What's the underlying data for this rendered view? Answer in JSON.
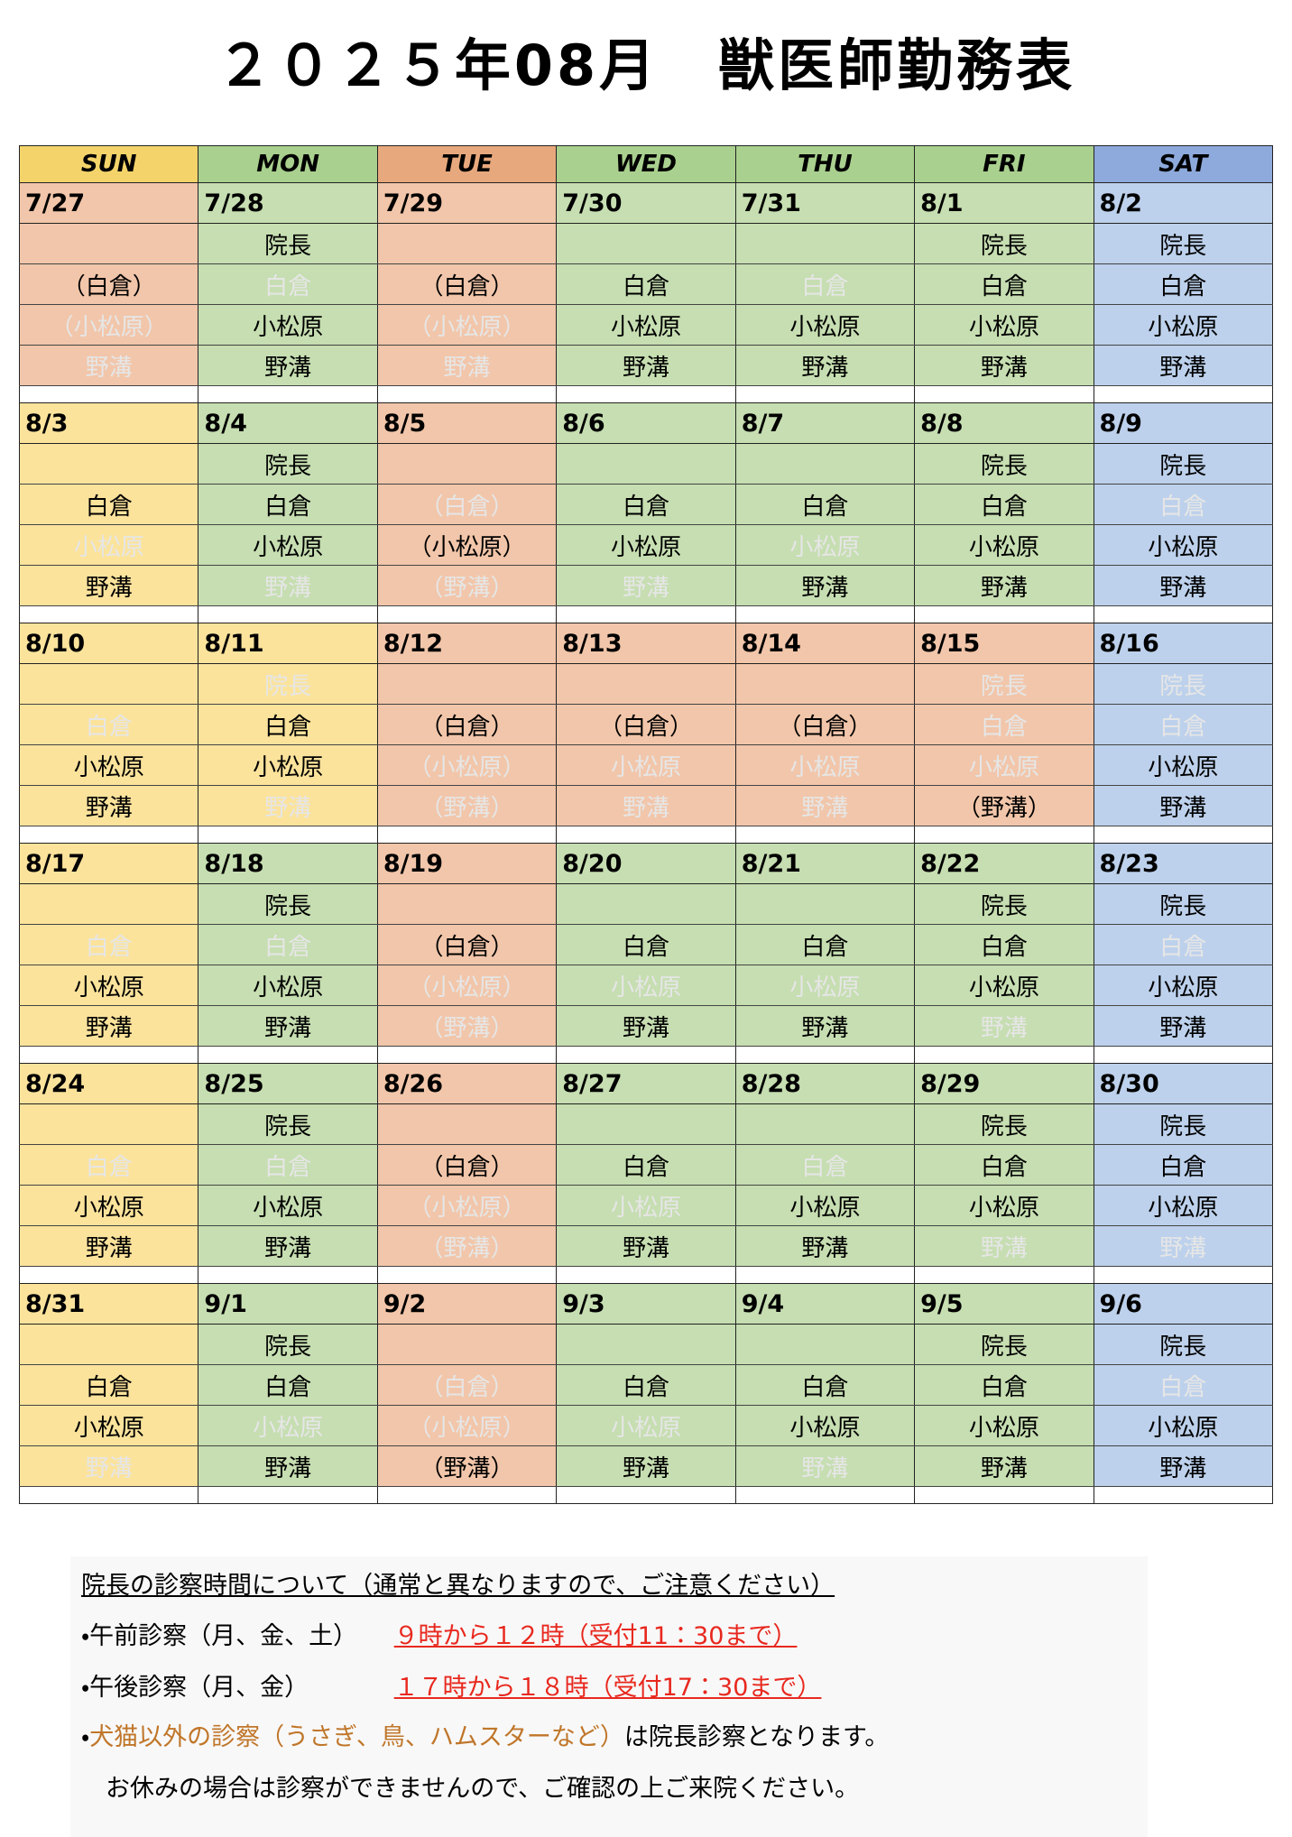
{
  "title": "２０２５年08月　獣医師勤務表",
  "headers": [
    {
      "text": "SUN",
      "color": "#f4d46a"
    },
    {
      "text": "MON",
      "color": "#a9d08e"
    },
    {
      "text": "TUE",
      "color": "#e8a87d"
    },
    {
      "text": "WED",
      "color": "#a9d08e"
    },
    {
      "text": "THU",
      "color": "#a9d08e"
    },
    {
      "text": "FRI",
      "color": "#a9d08e"
    },
    {
      "text": "SAT",
      "color": "#8ea9db"
    }
  ],
  "weeks": [
    [
      {
        "date": "7/27",
        "color": "#f2c6aa",
        "staff": [
          null,
          {
            "text": "（白倉）",
            "off": false
          },
          {
            "text": "（小松原）",
            "off": true
          },
          {
            "text": "野溝",
            "off": true
          }
        ]
      },
      {
        "date": "7/28",
        "color": "#c6deb1",
        "staff": [
          {
            "text": "院長",
            "off": false
          },
          {
            "text": "白倉",
            "off": true
          },
          {
            "text": "小松原",
            "off": false
          },
          {
            "text": "野溝",
            "off": false
          }
        ]
      },
      {
        "date": "7/29",
        "color": "#f2c6aa",
        "staff": [
          null,
          {
            "text": "（白倉）",
            "off": false
          },
          {
            "text": "（小松原）",
            "off": true
          },
          {
            "text": "野溝",
            "off": true
          }
        ]
      },
      {
        "date": "7/30",
        "color": "#c6deb1",
        "staff": [
          null,
          {
            "text": "白倉",
            "off": false
          },
          {
            "text": "小松原",
            "off": false
          },
          {
            "text": "野溝",
            "off": false
          }
        ]
      },
      {
        "date": "7/31",
        "color": "#c6deb1",
        "staff": [
          null,
          {
            "text": "白倉",
            "off": true
          },
          {
            "text": "小松原",
            "off": false
          },
          {
            "text": "野溝",
            "off": false
          }
        ]
      },
      {
        "date": "8/1",
        "color": "#c6deb1",
        "staff": [
          {
            "text": "院長",
            "off": false
          },
          {
            "text": "白倉",
            "off": false
          },
          {
            "text": "小松原",
            "off": false
          },
          {
            "text": "野溝",
            "off": false
          }
        ]
      },
      {
        "date": "8/2",
        "color": "#bdd1ec",
        "staff": [
          {
            "text": "院長",
            "off": false
          },
          {
            "text": "白倉",
            "off": false
          },
          {
            "text": "小松原",
            "off": false
          },
          {
            "text": "野溝",
            "off": false
          }
        ]
      }
    ],
    [
      {
        "date": "8/3",
        "color": "#fbe39c",
        "staff": [
          null,
          {
            "text": "白倉",
            "off": false
          },
          {
            "text": "小松原",
            "off": true
          },
          {
            "text": "野溝",
            "off": false
          }
        ]
      },
      {
        "date": "8/4",
        "color": "#c6deb1",
        "staff": [
          {
            "text": "院長",
            "off": false
          },
          {
            "text": "白倉",
            "off": false
          },
          {
            "text": "小松原",
            "off": false
          },
          {
            "text": "野溝",
            "off": true
          }
        ]
      },
      {
        "date": "8/5",
        "color": "#f2c6aa",
        "staff": [
          null,
          {
            "text": "（白倉）",
            "off": true
          },
          {
            "text": "（小松原）",
            "off": false
          },
          {
            "text": "（野溝）",
            "off": true
          }
        ]
      },
      {
        "date": "8/6",
        "color": "#c6deb1",
        "staff": [
          null,
          {
            "text": "白倉",
            "off": false
          },
          {
            "text": "小松原",
            "off": false
          },
          {
            "text": "野溝",
            "off": true
          }
        ]
      },
      {
        "date": "8/7",
        "color": "#c6deb1",
        "staff": [
          null,
          {
            "text": "白倉",
            "off": false
          },
          {
            "text": "小松原",
            "off": true
          },
          {
            "text": "野溝",
            "off": false
          }
        ]
      },
      {
        "date": "8/8",
        "color": "#c6deb1",
        "staff": [
          {
            "text": "院長",
            "off": false
          },
          {
            "text": "白倉",
            "off": false
          },
          {
            "text": "小松原",
            "off": false
          },
          {
            "text": "野溝",
            "off": false
          }
        ]
      },
      {
        "date": "8/9",
        "color": "#bdd1ec",
        "staff": [
          {
            "text": "院長",
            "off": false
          },
          {
            "text": "白倉",
            "off": true
          },
          {
            "text": "小松原",
            "off": false
          },
          {
            "text": "野溝",
            "off": false
          }
        ]
      }
    ],
    [
      {
        "date": "8/10",
        "color": "#fbe39c",
        "staff": [
          null,
          {
            "text": "白倉",
            "off": true
          },
          {
            "text": "小松原",
            "off": false
          },
          {
            "text": "野溝",
            "off": false
          }
        ]
      },
      {
        "date": "8/11",
        "color": "#fbe39c",
        "staff": [
          {
            "text": "院長",
            "off": true
          },
          {
            "text": "白倉",
            "off": false
          },
          {
            "text": "小松原",
            "off": false
          },
          {
            "text": "野溝",
            "off": true
          }
        ]
      },
      {
        "date": "8/12",
        "color": "#f2c6aa",
        "staff": [
          null,
          {
            "text": "（白倉）",
            "off": false
          },
          {
            "text": "（小松原）",
            "off": true
          },
          {
            "text": "（野溝）",
            "off": true
          }
        ]
      },
      {
        "date": "8/13",
        "color": "#f2c6aa",
        "staff": [
          null,
          {
            "text": "（白倉）",
            "off": false
          },
          {
            "text": "小松原",
            "off": true
          },
          {
            "text": "野溝",
            "off": true
          }
        ]
      },
      {
        "date": "8/14",
        "color": "#f2c6aa",
        "staff": [
          null,
          {
            "text": "（白倉）",
            "off": false
          },
          {
            "text": "小松原",
            "off": true
          },
          {
            "text": "野溝",
            "off": true
          }
        ]
      },
      {
        "date": "8/15",
        "color": "#f2c6aa",
        "staff": [
          {
            "text": "院長",
            "off": true
          },
          {
            "text": "白倉",
            "off": true
          },
          {
            "text": "小松原",
            "off": true
          },
          {
            "text": "（野溝）",
            "off": false
          }
        ]
      },
      {
        "date": "8/16",
        "color": "#bdd1ec",
        "staff": [
          {
            "text": "院長",
            "off": true
          },
          {
            "text": "白倉",
            "off": true
          },
          {
            "text": "小松原",
            "off": false
          },
          {
            "text": "野溝",
            "off": false
          }
        ]
      }
    ],
    [
      {
        "date": "8/17",
        "color": "#fbe39c",
        "staff": [
          null,
          {
            "text": "白倉",
            "off": true
          },
          {
            "text": "小松原",
            "off": false
          },
          {
            "text": "野溝",
            "off": false
          }
        ]
      },
      {
        "date": "8/18",
        "color": "#c6deb1",
        "staff": [
          {
            "text": "院長",
            "off": false
          },
          {
            "text": "白倉",
            "off": true
          },
          {
            "text": "小松原",
            "off": false
          },
          {
            "text": "野溝",
            "off": false
          }
        ]
      },
      {
        "date": "8/19",
        "color": "#f2c6aa",
        "staff": [
          null,
          {
            "text": "（白倉）",
            "off": false
          },
          {
            "text": "（小松原）",
            "off": true
          },
          {
            "text": "（野溝）",
            "off": true
          }
        ]
      },
      {
        "date": "8/20",
        "color": "#c6deb1",
        "staff": [
          null,
          {
            "text": "白倉",
            "off": false
          },
          {
            "text": "小松原",
            "off": true
          },
          {
            "text": "野溝",
            "off": false
          }
        ]
      },
      {
        "date": "8/21",
        "color": "#c6deb1",
        "staff": [
          null,
          {
            "text": "白倉",
            "off": false
          },
          {
            "text": "小松原",
            "off": true
          },
          {
            "text": "野溝",
            "off": false
          }
        ]
      },
      {
        "date": "8/22",
        "color": "#c6deb1",
        "staff": [
          {
            "text": "院長",
            "off": false
          },
          {
            "text": "白倉",
            "off": false
          },
          {
            "text": "小松原",
            "off": false
          },
          {
            "text": "野溝",
            "off": true
          }
        ]
      },
      {
        "date": "8/23",
        "color": "#bdd1ec",
        "staff": [
          {
            "text": "院長",
            "off": false
          },
          {
            "text": "白倉",
            "off": true
          },
          {
            "text": "小松原",
            "off": false
          },
          {
            "text": "野溝",
            "off": false
          }
        ]
      }
    ],
    [
      {
        "date": "8/24",
        "color": "#fbe39c",
        "staff": [
          null,
          {
            "text": "白倉",
            "off": true
          },
          {
            "text": "小松原",
            "off": false
          },
          {
            "text": "野溝",
            "off": false
          }
        ]
      },
      {
        "date": "8/25",
        "color": "#c6deb1",
        "staff": [
          {
            "text": "院長",
            "off": false
          },
          {
            "text": "白倉",
            "off": true
          },
          {
            "text": "小松原",
            "off": false
          },
          {
            "text": "野溝",
            "off": false
          }
        ]
      },
      {
        "date": "8/26",
        "color": "#f2c6aa",
        "staff": [
          null,
          {
            "text": "（白倉）",
            "off": false
          },
          {
            "text": "（小松原）",
            "off": true
          },
          {
            "text": "（野溝）",
            "off": true
          }
        ]
      },
      {
        "date": "8/27",
        "color": "#c6deb1",
        "staff": [
          null,
          {
            "text": "白倉",
            "off": false
          },
          {
            "text": "小松原",
            "off": true
          },
          {
            "text": "野溝",
            "off": false
          }
        ]
      },
      {
        "date": "8/28",
        "color": "#c6deb1",
        "staff": [
          null,
          {
            "text": "白倉",
            "off": true
          },
          {
            "text": "小松原",
            "off": false
          },
          {
            "text": "野溝",
            "off": false
          }
        ]
      },
      {
        "date": "8/29",
        "color": "#c6deb1",
        "staff": [
          {
            "text": "院長",
            "off": false
          },
          {
            "text": "白倉",
            "off": false
          },
          {
            "text": "小松原",
            "off": false
          },
          {
            "text": "野溝",
            "off": true
          }
        ]
      },
      {
        "date": "8/30",
        "color": "#bdd1ec",
        "staff": [
          {
            "text": "院長",
            "off": false
          },
          {
            "text": "白倉",
            "off": false
          },
          {
            "text": "小松原",
            "off": false
          },
          {
            "text": "野溝",
            "off": true
          }
        ]
      }
    ],
    [
      {
        "date": "8/31",
        "color": "#fbe39c",
        "staff": [
          null,
          {
            "text": "白倉",
            "off": false
          },
          {
            "text": "小松原",
            "off": false
          },
          {
            "text": "野溝",
            "off": true
          }
        ]
      },
      {
        "date": "9/1",
        "color": "#c6deb1",
        "staff": [
          {
            "text": "院長",
            "off": false
          },
          {
            "text": "白倉",
            "off": false
          },
          {
            "text": "小松原",
            "off": true
          },
          {
            "text": "野溝",
            "off": false
          }
        ]
      },
      {
        "date": "9/2",
        "color": "#f2c6aa",
        "staff": [
          null,
          {
            "text": "（白倉）",
            "off": true
          },
          {
            "text": "（小松原）",
            "off": true
          },
          {
            "text": "（野溝）",
            "off": false
          }
        ]
      },
      {
        "date": "9/3",
        "color": "#c6deb1",
        "staff": [
          null,
          {
            "text": "白倉",
            "off": false
          },
          {
            "text": "小松原",
            "off": true
          },
          {
            "text": "野溝",
            "off": false
          }
        ]
      },
      {
        "date": "9/4",
        "color": "#c6deb1",
        "staff": [
          null,
          {
            "text": "白倉",
            "off": false
          },
          {
            "text": "小松原",
            "off": false
          },
          {
            "text": "野溝",
            "off": true
          }
        ]
      },
      {
        "date": "9/5",
        "color": "#c6deb1",
        "staff": [
          {
            "text": "院長",
            "off": false
          },
          {
            "text": "白倉",
            "off": false
          },
          {
            "text": "小松原",
            "off": false
          },
          {
            "text": "野溝",
            "off": false
          }
        ]
      },
      {
        "date": "9/6",
        "color": "#bdd1ec",
        "staff": [
          {
            "text": "院長",
            "off": false
          },
          {
            "text": "白倉",
            "off": true
          },
          {
            "text": "小松原",
            "off": false
          },
          {
            "text": "野溝",
            "off": false
          }
        ]
      }
    ]
  ],
  "notes": [
    [
      {
        "text": "院長の診察時間について（通常と異なりますので、ご注意ください）",
        "color": "#000000",
        "underline": true
      }
    ],
    [
      {
        "text": "・午前診察（月、金、土）　　",
        "color": "#000000",
        "underline": false
      },
      {
        "text": "９時から１２時（受付11：30まで）",
        "color": "#e8281e",
        "underline": true
      }
    ],
    [
      {
        "text": "・午後診察（月、金）　　　　",
        "color": "#000000",
        "underline": false
      },
      {
        "text": "１７時から１８時（受付17：30まで）",
        "color": "#e8281e",
        "underline": true
      }
    ],
    [
      {
        "text": "・",
        "color": "#000000",
        "underline": false
      },
      {
        "text": "犬猫以外の診察（うさぎ、鳥、ハムスターなど）",
        "color": "#c0762a",
        "underline": false
      },
      {
        "text": "は院長診察となります。",
        "color": "#000000",
        "underline": false
      }
    ],
    [
      {
        "text": "　お休みの場合は診察ができませんので、ご確認の上ご来院ください。",
        "color": "#000000",
        "underline": false
      }
    ]
  ]
}
